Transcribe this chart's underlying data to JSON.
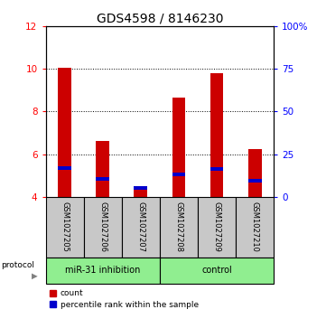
{
  "title": "GDS4598 / 8146230",
  "samples": [
    "GSM1027205",
    "GSM1027206",
    "GSM1027207",
    "GSM1027208",
    "GSM1027209",
    "GSM1027210"
  ],
  "red_values": [
    10.05,
    6.6,
    4.45,
    8.65,
    9.8,
    6.25
  ],
  "blue_values": [
    5.35,
    4.85,
    4.42,
    5.05,
    5.3,
    4.75
  ],
  "ylim_left": [
    4,
    12
  ],
  "ylim_right": [
    0,
    100
  ],
  "yticks_left": [
    4,
    6,
    8,
    10,
    12
  ],
  "yticks_right": [
    0,
    25,
    50,
    75,
    100
  ],
  "ytick_labels_right": [
    "0",
    "25",
    "50",
    "75",
    "100%"
  ],
  "bar_bottom": 4.0,
  "red_color": "#CC0000",
  "blue_color": "#0000CC",
  "bar_width": 0.35,
  "sample_box_color": "#C8C8C8",
  "green_color": "#90EE90",
  "protocol_label": "protocol",
  "legend_count": "count",
  "legend_pct": "percentile rank within the sample",
  "title_fontsize": 10,
  "tick_fontsize": 7.5,
  "sample_fontsize": 6,
  "group_fontsize": 7,
  "legend_fontsize": 6.5,
  "group_split": 3,
  "n_samples": 6
}
